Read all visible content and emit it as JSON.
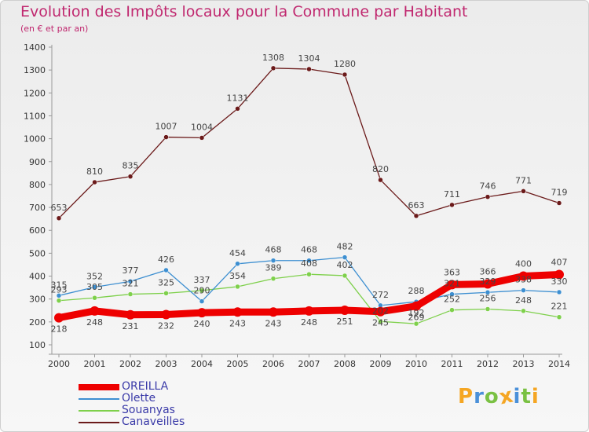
{
  "title": "Evolution des Impôts locaux pour la Commune par Habitant",
  "subtitle": "(en € et par an)",
  "logo": {
    "text": "Proxiti",
    "letters": [
      "P",
      "r",
      "o",
      "x",
      "i",
      "t",
      "i"
    ],
    "colors": [
      "#f5a623",
      "#4a90d9",
      "#7ac143",
      "#f5a623",
      "#4a90d9",
      "#7ac143",
      "#f5a623"
    ]
  },
  "chart_data": {
    "type": "line",
    "x": [
      "2000",
      "2001",
      "2002",
      "2003",
      "2004",
      "2005",
      "2006",
      "2007",
      "2008",
      "2009",
      "2010",
      "2011",
      "2012",
      "2013",
      "2014"
    ],
    "ylim": [
      100,
      1400
    ],
    "yticks": [
      100,
      200,
      300,
      400,
      500,
      600,
      700,
      800,
      900,
      1000,
      1100,
      1200,
      1300,
      1400
    ],
    "grid": false,
    "legend_position": "bottom-left",
    "series": [
      {
        "name": "OREILLA",
        "color": "#ee0000",
        "values": [
          218,
          248,
          231,
          232,
          240,
          243,
          243,
          248,
          251,
          245,
          269,
          363,
          366,
          400,
          407
        ]
      },
      {
        "name": "Olette",
        "color": "#3d8fd1",
        "values": [
          315,
          352,
          377,
          426,
          290,
          454,
          468,
          468,
          482,
          272,
          288,
          321,
          329,
          338,
          330
        ]
      },
      {
        "name": "Souanyas",
        "color": "#7ed04b",
        "values": [
          293,
          305,
          321,
          325,
          337,
          354,
          389,
          408,
          402,
          202,
          192,
          252,
          256,
          248,
          221
        ]
      },
      {
        "name": "Canaveilles",
        "color": "#6b1a1a",
        "values": [
          653,
          810,
          835,
          1007,
          1004,
          1131,
          1308,
          1304,
          1280,
          820,
          663,
          711,
          746,
          771,
          719
        ]
      }
    ]
  }
}
